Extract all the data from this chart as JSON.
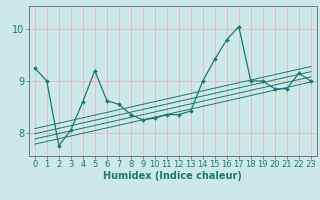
{
  "title": "",
  "xlabel": "Humidex (Indice chaleur)",
  "bg_color": "#cce8e8",
  "grid_color": "#e8b0b0",
  "line_color": "#1a7a6e",
  "spine_color": "#666666",
  "xlim": [
    -0.5,
    23.5
  ],
  "ylim": [
    7.55,
    10.45
  ],
  "yticks": [
    8,
    9,
    10
  ],
  "xticks": [
    0,
    1,
    2,
    3,
    4,
    5,
    6,
    7,
    8,
    9,
    10,
    11,
    12,
    13,
    14,
    15,
    16,
    17,
    18,
    19,
    20,
    21,
    22,
    23
  ],
  "main_x": [
    0,
    1,
    2,
    3,
    4,
    5,
    6,
    7,
    8,
    9,
    10,
    11,
    12,
    13,
    14,
    15,
    16,
    17,
    18,
    19,
    20,
    21,
    22,
    23
  ],
  "main_y": [
    9.25,
    9.0,
    7.75,
    8.05,
    8.6,
    9.2,
    8.62,
    8.55,
    8.35,
    8.25,
    8.28,
    8.35,
    8.35,
    8.42,
    9.0,
    9.42,
    9.8,
    10.05,
    9.0,
    9.0,
    8.85,
    8.85,
    9.15,
    9.0
  ],
  "trend_lines": [
    {
      "x": [
        0,
        23
      ],
      "y": [
        7.78,
        8.98
      ]
    },
    {
      "x": [
        0,
        23
      ],
      "y": [
        7.88,
        9.08
      ]
    },
    {
      "x": [
        0,
        23
      ],
      "y": [
        7.98,
        9.18
      ]
    },
    {
      "x": [
        0,
        23
      ],
      "y": [
        8.08,
        9.28
      ]
    }
  ],
  "xlabel_fontsize": 7,
  "tick_fontsize": 6,
  "ytick_fontsize": 7
}
